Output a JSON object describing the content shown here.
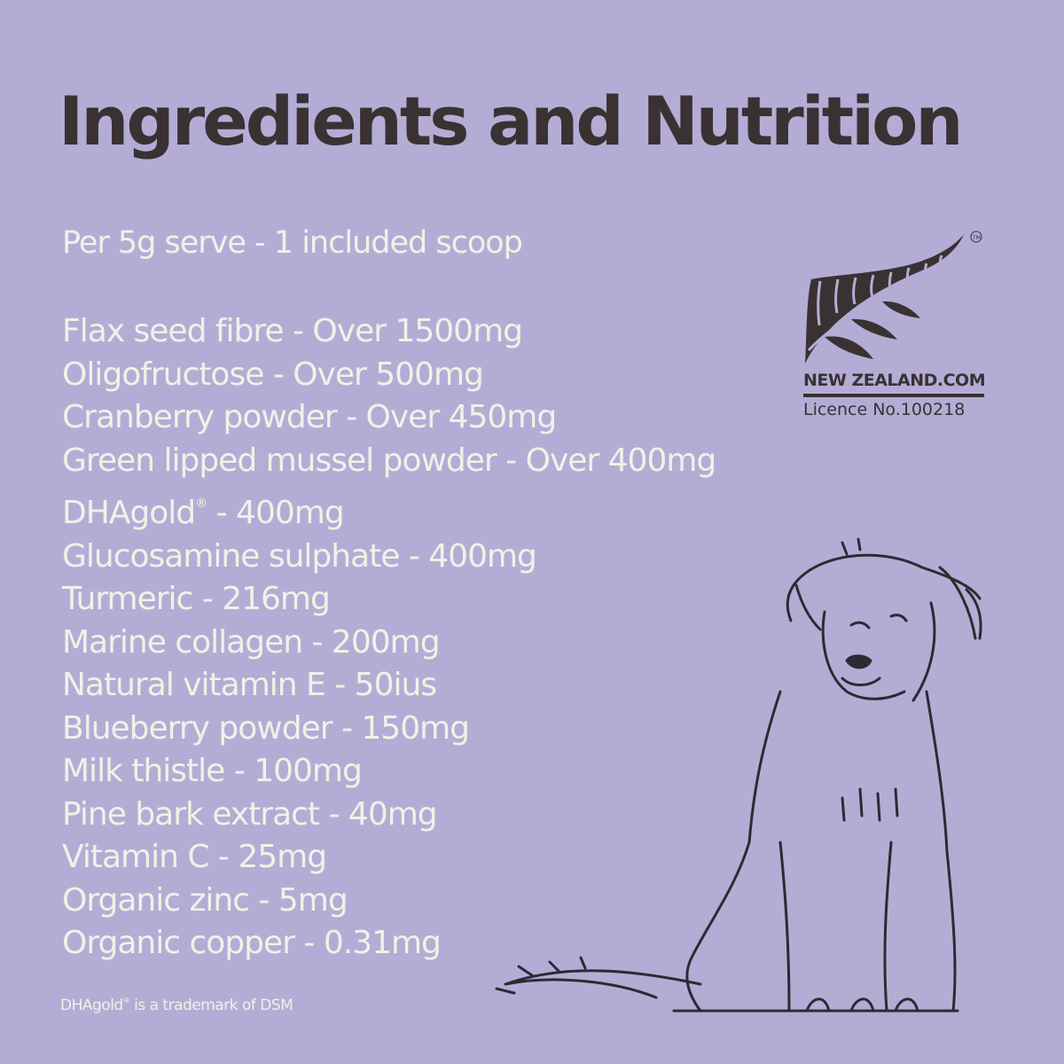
{
  "title": "Ingredients and Nutrition",
  "serving": "Per 5g serve - 1 included scoop",
  "ingredients": [
    {
      "text": "Flax seed fibre - Over 1500mg"
    },
    {
      "text": "Oligofructose - Over 500mg"
    },
    {
      "text": "Cranberry powder - Over 450mg"
    },
    {
      "text": "Green lipped mussel powder - Over 400mg"
    },
    {
      "name": "DHAgold",
      "mark": "®",
      "rest": " - 400mg"
    },
    {
      "text": "Glucosamine sulphate - 400mg"
    },
    {
      "text": "Turmeric - 216mg"
    },
    {
      "text": "Marine collagen - 200mg"
    },
    {
      "text": "Natural vitamin E - 50ius"
    },
    {
      "text": "Blueberry powder - 150mg"
    },
    {
      "text": "Milk thistle - 100mg"
    },
    {
      "text": "Pine bark extract - 40mg"
    },
    {
      "text": "Vitamin C -  25mg"
    },
    {
      "text": "Organic zinc - 5mg"
    },
    {
      "text": "Organic copper - 0.31mg"
    }
  ],
  "footnote": {
    "name": "DHAgold",
    "mark": "®",
    "rest": " is a trademark of DSM"
  },
  "badge": {
    "name": "NEW ZEALAND.COM",
    "licence": "Licence No.100218",
    "tm": "TM",
    "icon": "silver-fern-icon"
  },
  "illustration": "dog-line-drawing",
  "colors": {
    "background": "#b3add6",
    "text": "#f4f0e6",
    "dark": "#3a3133"
  }
}
